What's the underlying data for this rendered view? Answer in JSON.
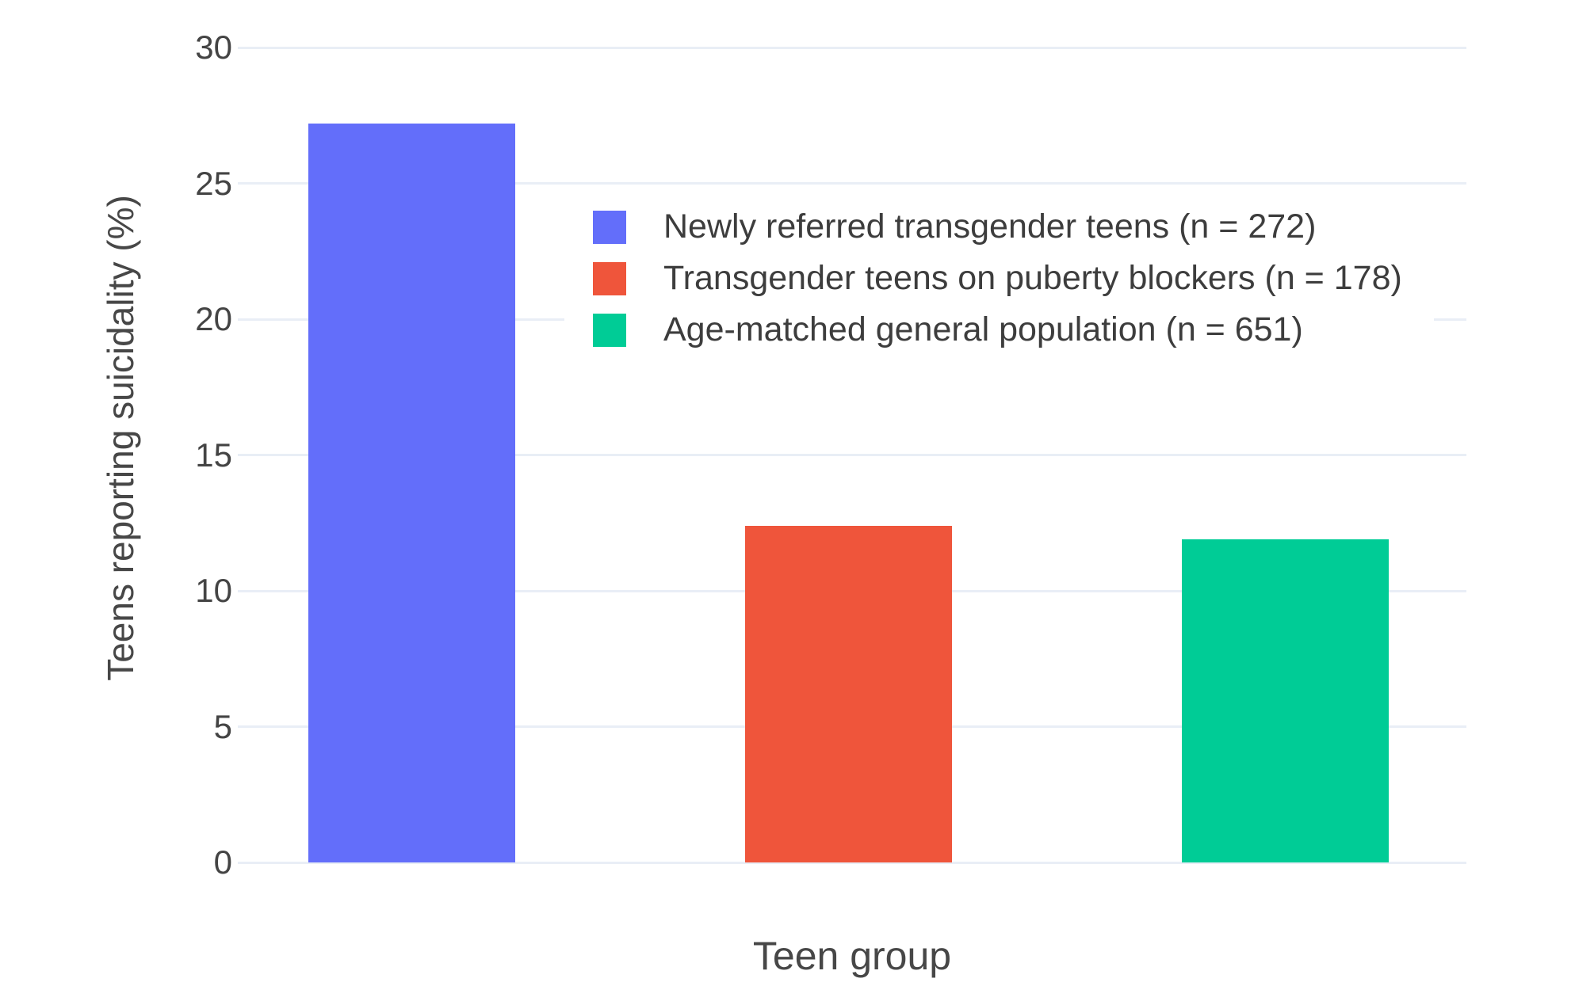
{
  "chart_data": {
    "type": "bar",
    "title": "",
    "xlabel": "Teen group",
    "ylabel": "Teens reporting suicidality (%)",
    "ylim": [
      0,
      30
    ],
    "yticks": [
      0,
      5,
      10,
      15,
      20,
      25,
      30
    ],
    "grid": true,
    "grid_color": "#E9EEF6",
    "background_color": "#ffffff",
    "legend_position": "inside top-center, overlapping plot area",
    "categories": [
      "Newly referred transgender teens (n = 272)",
      "Transgender teens on puberty blockers (n = 178)",
      "Age-matched general population (n = 651)"
    ],
    "series": [
      {
        "name": "Newly referred transgender teens (n = 272)",
        "value": 27.2,
        "color": "#636EFA"
      },
      {
        "name": "Transgender teens on puberty blockers (n = 178)",
        "value": 12.4,
        "color": "#EF553B"
      },
      {
        "name": "Age-matched general population (n = 651)",
        "value": 11.9,
        "color": "#00CC96"
      }
    ]
  }
}
